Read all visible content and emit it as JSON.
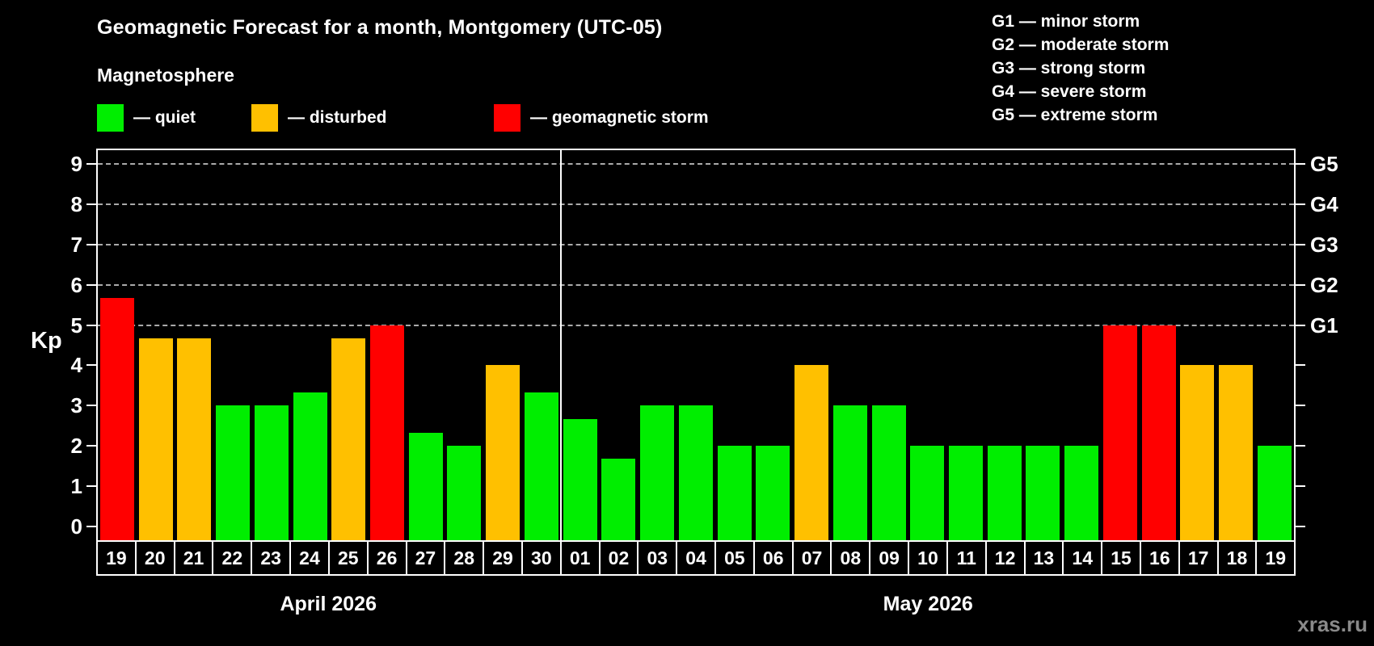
{
  "title": "Geomagnetic Forecast for a month, Montgomery (UTC-05)",
  "subtitle": "Magnetosphere",
  "status_legend": [
    {
      "key": "quiet",
      "label": "— quiet",
      "color": "#00ee00"
    },
    {
      "key": "disturbed",
      "label": "— disturbed",
      "color": "#ffc000"
    },
    {
      "key": "storm",
      "label": "— geomagnetic storm",
      "color": "#ff0000"
    }
  ],
  "g_legend": [
    "G1 — minor storm",
    "G2 — moderate storm",
    "G3 — strong storm",
    "G4 — severe storm",
    "G5 — extreme storm"
  ],
  "watermark": "xras.ru",
  "chart_data": {
    "type": "bar",
    "title": "Geomagnetic Forecast for a month, Montgomery (UTC-05)",
    "ylabel": "Kp",
    "ylim": [
      -0.35,
      9.35
    ],
    "y_ticks": [
      0,
      1,
      2,
      3,
      4,
      5,
      6,
      7,
      8,
      9
    ],
    "gridlines_at_kp": [
      5,
      6,
      7,
      8,
      9
    ],
    "grid": "dashed, only at storm levels G1–G5",
    "legend_position": "top",
    "right_axis_labels": [
      {
        "kp": 5,
        "label": "G1"
      },
      {
        "kp": 6,
        "label": "G2"
      },
      {
        "kp": 7,
        "label": "G3"
      },
      {
        "kp": 8,
        "label": "G4"
      },
      {
        "kp": 9,
        "label": "G5"
      }
    ],
    "status_colors": {
      "quiet": "#00ee00",
      "disturbed": "#ffc000",
      "storm": "#ff0000"
    },
    "months": [
      {
        "label": "April 2026",
        "days": [
          {
            "day": "19",
            "kp": 5.67,
            "status": "storm"
          },
          {
            "day": "20",
            "kp": 4.67,
            "status": "disturbed"
          },
          {
            "day": "21",
            "kp": 4.67,
            "status": "disturbed"
          },
          {
            "day": "22",
            "kp": 3.0,
            "status": "quiet"
          },
          {
            "day": "23",
            "kp": 3.0,
            "status": "quiet"
          },
          {
            "day": "24",
            "kp": 3.33,
            "status": "quiet"
          },
          {
            "day": "25",
            "kp": 4.67,
            "status": "disturbed"
          },
          {
            "day": "26",
            "kp": 5.0,
            "status": "storm"
          },
          {
            "day": "27",
            "kp": 2.33,
            "status": "quiet"
          },
          {
            "day": "28",
            "kp": 2.0,
            "status": "quiet"
          },
          {
            "day": "29",
            "kp": 4.0,
            "status": "disturbed"
          },
          {
            "day": "30",
            "kp": 3.33,
            "status": "quiet"
          }
        ]
      },
      {
        "label": "May 2026",
        "days": [
          {
            "day": "01",
            "kp": 2.67,
            "status": "quiet"
          },
          {
            "day": "02",
            "kp": 1.67,
            "status": "quiet"
          },
          {
            "day": "03",
            "kp": 3.0,
            "status": "quiet"
          },
          {
            "day": "04",
            "kp": 3.0,
            "status": "quiet"
          },
          {
            "day": "05",
            "kp": 2.0,
            "status": "quiet"
          },
          {
            "day": "06",
            "kp": 2.0,
            "status": "quiet"
          },
          {
            "day": "07",
            "kp": 4.0,
            "status": "disturbed"
          },
          {
            "day": "08",
            "kp": 3.0,
            "status": "quiet"
          },
          {
            "day": "09",
            "kp": 3.0,
            "status": "quiet"
          },
          {
            "day": "10",
            "kp": 2.0,
            "status": "quiet"
          },
          {
            "day": "11",
            "kp": 2.0,
            "status": "quiet"
          },
          {
            "day": "12",
            "kp": 2.0,
            "status": "quiet"
          },
          {
            "day": "13",
            "kp": 2.0,
            "status": "quiet"
          },
          {
            "day": "14",
            "kp": 2.0,
            "status": "quiet"
          },
          {
            "day": "15",
            "kp": 5.0,
            "status": "storm"
          },
          {
            "day": "16",
            "kp": 5.0,
            "status": "storm"
          },
          {
            "day": "17",
            "kp": 4.0,
            "status": "disturbed"
          },
          {
            "day": "18",
            "kp": 4.0,
            "status": "disturbed"
          },
          {
            "day": "19",
            "kp": 2.0,
            "status": "quiet"
          }
        ]
      }
    ]
  }
}
